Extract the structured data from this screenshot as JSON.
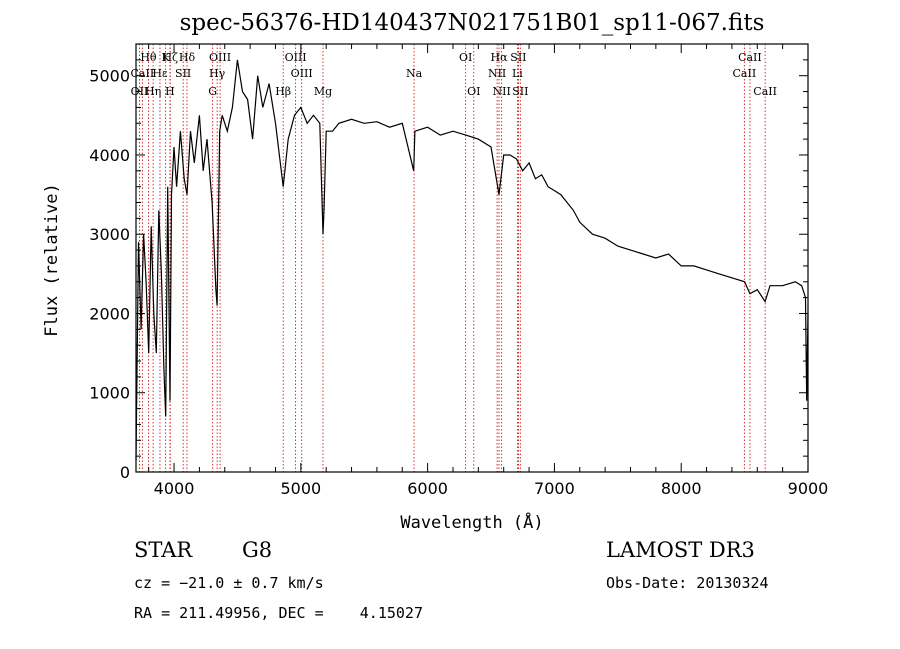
{
  "chart_data": {
    "type": "line",
    "title": "spec-56376-HD140437N021751B01_sp11-067.fits",
    "xlabel": "Wavelength (Å)",
    "ylabel": "Flux (relative)",
    "xlim": [
      3700,
      9000
    ],
    "ylim": [
      0,
      5400
    ],
    "xticks": [
      4000,
      5000,
      6000,
      7000,
      8000,
      9000
    ],
    "yticks": [
      0,
      1000,
      2000,
      3000,
      4000,
      5000
    ],
    "series": [
      {
        "name": "spectrum",
        "x": [
          3700,
          3720,
          3740,
          3760,
          3780,
          3800,
          3820,
          3840,
          3860,
          3880,
          3900,
          3920,
          3934,
          3950,
          3968,
          3980,
          4000,
          4020,
          4050,
          4080,
          4102,
          4130,
          4160,
          4200,
          4230,
          4260,
          4300,
          4330,
          4340,
          4360,
          4380,
          4420,
          4460,
          4500,
          4540,
          4580,
          4620,
          4660,
          4700,
          4750,
          4800,
          4861,
          4900,
          4950,
          5000,
          5050,
          5100,
          5150,
          5175,
          5183,
          5200,
          5250,
          5300,
          5400,
          5500,
          5600,
          5700,
          5800,
          5890,
          5900,
          6000,
          6100,
          6200,
          6300,
          6400,
          6500,
          6563,
          6600,
          6650,
          6700,
          6750,
          6800,
          6850,
          6900,
          6950,
          7000,
          7050,
          7100,
          7150,
          7200,
          7300,
          7400,
          7500,
          7600,
          7700,
          7800,
          7900,
          8000,
          8100,
          8200,
          8300,
          8400,
          8500,
          8542,
          8600,
          8662,
          8700,
          8800,
          8900,
          8950,
          8980,
          8990,
          9000
        ],
        "y": [
          150,
          2900,
          1800,
          3000,
          2400,
          1500,
          3100,
          2000,
          1500,
          3300,
          2500,
          1300,
          700,
          3600,
          900,
          3500,
          4100,
          3600,
          4300,
          3700,
          3500,
          4300,
          3900,
          4500,
          3800,
          4200,
          3400,
          2300,
          2100,
          4300,
          4500,
          4300,
          4600,
          5200,
          4800,
          4700,
          4200,
          5000,
          4600,
          4900,
          4400,
          3600,
          4200,
          4500,
          4600,
          4400,
          4500,
          4400,
          3000,
          3300,
          4300,
          4300,
          4400,
          4450,
          4400,
          4420,
          4350,
          4400,
          3800,
          4300,
          4350,
          4250,
          4300,
          4250,
          4200,
          4100,
          3500,
          4000,
          4000,
          3950,
          3800,
          3900,
          3700,
          3750,
          3600,
          3550,
          3500,
          3400,
          3300,
          3150,
          3000,
          2950,
          2850,
          2800,
          2750,
          2700,
          2750,
          2600,
          2600,
          2550,
          2500,
          2450,
          2400,
          2250,
          2300,
          2150,
          2350,
          2350,
          2400,
          2350,
          2200,
          900,
          2000
        ]
      }
    ],
    "lines": [
      {
        "label": "Hθ",
        "wl": 3798,
        "row": 1
      },
      {
        "label": "CaII",
        "wl": 3750,
        "row": 2
      },
      {
        "label": "OII",
        "wl": 3727,
        "row": 3
      },
      {
        "label": "Hη",
        "wl": 3835,
        "row": 3
      },
      {
        "label": "Hε",
        "wl": 3889,
        "row": 2
      },
      {
        "label": "K",
        "wl": 3934,
        "row": 1
      },
      {
        "label": "Hζ",
        "wl": 3970,
        "row": 1
      },
      {
        "label": "H",
        "wl": 3968,
        "row": 3
      },
      {
        "label": "SII",
        "wl": 4072,
        "row": 2
      },
      {
        "label": "Hδ",
        "wl": 4102,
        "row": 1
      },
      {
        "label": "OIII",
        "wl": 4363,
        "row": 1
      },
      {
        "label": "Hγ",
        "wl": 4340,
        "row": 2
      },
      {
        "label": "G",
        "wl": 4305,
        "row": 3
      },
      {
        "label": "OIII",
        "wl": 4959,
        "row": 1
      },
      {
        "label": "OIII",
        "wl": 5007,
        "row": 2
      },
      {
        "label": "Hβ",
        "wl": 4861,
        "row": 3
      },
      {
        "label": "Mg",
        "wl": 5175,
        "row": 3
      },
      {
        "label": "Na",
        "wl": 5893,
        "row": 2
      },
      {
        "label": "OI",
        "wl": 6300,
        "row": 1
      },
      {
        "label": "OI",
        "wl": 6364,
        "row": 3
      },
      {
        "label": "Hα",
        "wl": 6563,
        "row": 1
      },
      {
        "label": "SII",
        "wl": 6716,
        "row": 1
      },
      {
        "label": "NII",
        "wl": 6548,
        "row": 2
      },
      {
        "label": "Li",
        "wl": 6708,
        "row": 2
      },
      {
        "label": "NII",
        "wl": 6584,
        "row": 3
      },
      {
        "label": "SII",
        "wl": 6731,
        "row": 3
      },
      {
        "label": "CaII",
        "wl": 8542,
        "row": 1
      },
      {
        "label": "CaII",
        "wl": 8498,
        "row": 2
      },
      {
        "label": "CaII",
        "wl": 8662,
        "row": 3
      }
    ]
  },
  "info": {
    "object_class": "STAR",
    "subclass": "G8",
    "survey": "LAMOST DR3",
    "cz": "cz = −21.0 ± 0.7 km/s",
    "obs_date": "Obs-Date: 20130324",
    "radec": "RA = 211.49956, DEC =    4.15027"
  },
  "colors": {
    "line_marker": "#cc0000",
    "spectrum": "#000000",
    "axis": "#000000"
  }
}
